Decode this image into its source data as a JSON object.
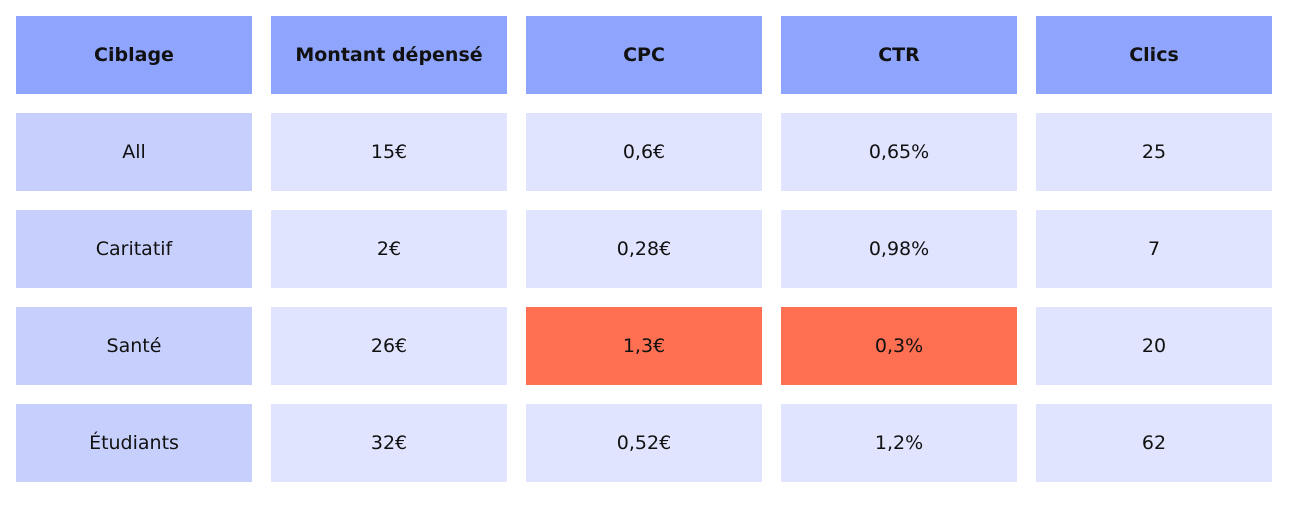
{
  "chart_data": {
    "type": "table",
    "columns": [
      "Ciblage",
      "Montant dépensé",
      "CPC",
      "CTR",
      "Clics"
    ],
    "rows": [
      [
        "All",
        "15€",
        "0,6€",
        "0,65%",
        "25"
      ],
      [
        "Caritatif",
        "2€",
        "0,28€",
        "0,98%",
        "7"
      ],
      [
        "Santé",
        "26€",
        "1,3€",
        "0,3%",
        "20"
      ],
      [
        "Étudiants",
        "32€",
        "0,52€",
        "1,2%",
        "62"
      ]
    ],
    "highlighted_cells": [
      [
        2,
        2
      ],
      [
        2,
        3
      ]
    ]
  },
  "colors": {
    "header": "#8fa4fd",
    "label_column": "#c7d0fd",
    "value_cell": "#e0e4fe",
    "highlight": "#ff6f51"
  }
}
